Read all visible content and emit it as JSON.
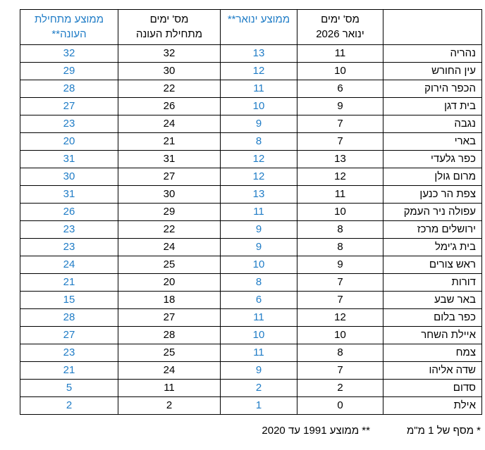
{
  "colors": {
    "accent_blue": "#1F7CC6",
    "text": "#000000",
    "border": "#000000"
  },
  "table": {
    "headers": {
      "city": "",
      "days_jan_line1": "מס' ימים",
      "days_jan_line2": "ינואר 2026",
      "avg_jan_line1": "ממוצע ינואר**",
      "avg_jan_line2": "",
      "days_season_line1": "מס' ימים",
      "days_season_line2": "מתחילת העונה",
      "avg_season_line1": "ממוצע מתחילת",
      "avg_season_line2": "העונה**"
    },
    "rows": [
      {
        "city": "נהריה",
        "days_jan": "11",
        "avg_jan": "13",
        "days_season": "32",
        "avg_season": "32"
      },
      {
        "city": "עין החורש",
        "days_jan": "10",
        "avg_jan": "12",
        "days_season": "30",
        "avg_season": "29"
      },
      {
        "city": "הכפר הירוק",
        "days_jan": "6",
        "avg_jan": "11",
        "days_season": "22",
        "avg_season": "28"
      },
      {
        "city": "בית דגן",
        "days_jan": "9",
        "avg_jan": "10",
        "days_season": "26",
        "avg_season": "27"
      },
      {
        "city": "נגבה",
        "days_jan": "7",
        "avg_jan": "9",
        "days_season": "24",
        "avg_season": "23"
      },
      {
        "city": "בארי",
        "days_jan": "7",
        "avg_jan": "8",
        "days_season": "21",
        "avg_season": "20"
      },
      {
        "city": "כפר גלעדי",
        "days_jan": "13",
        "avg_jan": "12",
        "days_season": "31",
        "avg_season": "31"
      },
      {
        "city": "מרום גולן",
        "days_jan": "12",
        "avg_jan": "12",
        "days_season": "27",
        "avg_season": "30"
      },
      {
        "city": "צפת הר כנען",
        "days_jan": "11",
        "avg_jan": "13",
        "days_season": "30",
        "avg_season": "31"
      },
      {
        "city": "עפולה ניר העמק",
        "days_jan": "10",
        "avg_jan": "11",
        "days_season": "29",
        "avg_season": "26"
      },
      {
        "city": "ירושלים מרכז",
        "days_jan": "8",
        "avg_jan": "9",
        "days_season": "22",
        "avg_season": "23"
      },
      {
        "city": "בית ג'ימל",
        "days_jan": "8",
        "avg_jan": "9",
        "days_season": "24",
        "avg_season": "23"
      },
      {
        "city": "ראש צורים",
        "days_jan": "9",
        "avg_jan": "10",
        "days_season": "25",
        "avg_season": "24"
      },
      {
        "city": "דורות",
        "days_jan": "7",
        "avg_jan": "8",
        "days_season": "20",
        "avg_season": "21"
      },
      {
        "city": "באר שבע",
        "days_jan": "7",
        "avg_jan": "6",
        "days_season": "18",
        "avg_season": "15"
      },
      {
        "city": "כפר בלום",
        "days_jan": "12",
        "avg_jan": "11",
        "days_season": "27",
        "avg_season": "28"
      },
      {
        "city": "איילת השחר",
        "days_jan": "10",
        "avg_jan": "10",
        "days_season": "28",
        "avg_season": "27"
      },
      {
        "city": "צמח",
        "days_jan": "8",
        "avg_jan": "11",
        "days_season": "25",
        "avg_season": "23"
      },
      {
        "city": "שדה אליהו",
        "days_jan": "7",
        "avg_jan": "9",
        "days_season": "24",
        "avg_season": "21"
      },
      {
        "city": "סדום",
        "days_jan": "2",
        "avg_jan": "2",
        "days_season": "11",
        "avg_season": "5"
      },
      {
        "city": "אילת",
        "days_jan": "0",
        "avg_jan": "1",
        "days_season": "2",
        "avg_season": "2"
      }
    ]
  },
  "footnotes": {
    "threshold": "* מסף של 1 מ\"מ",
    "average_period": "** ממוצע 1991 עד 2020"
  }
}
